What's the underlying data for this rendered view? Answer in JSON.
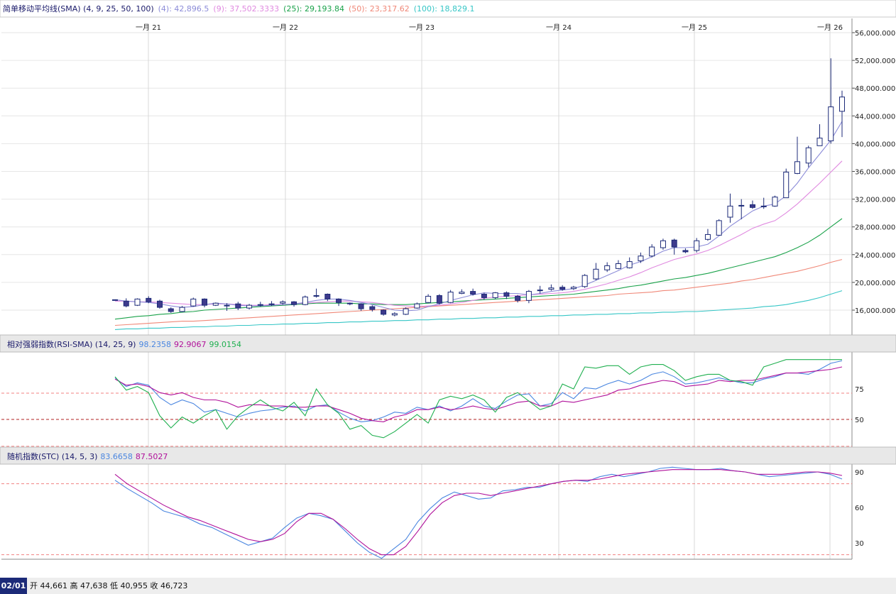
{
  "chart_data": {
    "type": "candlestick",
    "x_ticks": [
      "一月 21",
      "一月 22",
      "一月 23",
      "一月 24",
      "一月 25",
      "一月 26"
    ],
    "y_ticks_price": [
      "56,000.0000",
      "52,000.0000",
      "48,000.0000",
      "44,000.0000",
      "40,000.0000",
      "36,000.0000",
      "32,000.0000",
      "28,000.0000",
      "24,000.0000",
      "20,000.0000",
      "16,000.0000"
    ],
    "y_ticks_rsi": [
      "75",
      "50"
    ],
    "y_ticks_stc": [
      "90",
      "60",
      "30"
    ],
    "price_legend": {
      "title": "简单移动平均线(SMA) (4, 9, 25, 50, 100)",
      "items": [
        {
          "label": "(4): 42,896.5",
          "color": "#8c8cd8"
        },
        {
          "label": "(9): 37,502.3333",
          "color": "#e08ae0"
        },
        {
          "label": "(25): 29,193.84",
          "color": "#1aa24a"
        },
        {
          "label": "(50): 23,317.62",
          "color": "#f08878"
        },
        {
          "label": "(100): 18,829.1",
          "color": "#36c6c6"
        }
      ]
    },
    "rsi_legend": {
      "title": "相对强弱指数(RSI-SMA) (14, 25, 9)",
      "items": [
        {
          "label": "98.2358",
          "color": "#4a86e0"
        },
        {
          "label": "92.9067",
          "color": "#b0109a"
        },
        {
          "label": "99.0154",
          "color": "#20b050"
        }
      ]
    },
    "stc_legend": {
      "title": "随机指数(STC) (14, 5, 3)",
      "items": [
        {
          "label": "83.6658",
          "color": "#4a86e0"
        },
        {
          "label": "87.5027",
          "color": "#b0109a"
        }
      ]
    },
    "candles": [
      [
        17500,
        17500,
        17500,
        17500
      ],
      [
        17300,
        16600,
        17700,
        16400
      ],
      [
        16700,
        17600,
        17700,
        16600
      ],
      [
        17700,
        17200,
        18000,
        17000
      ],
      [
        17300,
        16400,
        17500,
        16200
      ],
      [
        16200,
        15800,
        16400,
        15600
      ],
      [
        15800,
        16400,
        16600,
        15700
      ],
      [
        16600,
        17600,
        17800,
        16500
      ],
      [
        17600,
        16700,
        17700,
        16400
      ],
      [
        16700,
        17000,
        17100,
        16600
      ],
      [
        16700,
        16600,
        17000,
        15900
      ],
      [
        16900,
        16300,
        17200,
        16000
      ],
      [
        16300,
        16700,
        16900,
        16100
      ],
      [
        16700,
        16800,
        17200,
        16500
      ],
      [
        16900,
        16800,
        17300,
        16600
      ],
      [
        17000,
        17200,
        17400,
        16800
      ],
      [
        17200,
        16800,
        17300,
        16500
      ],
      [
        16800,
        17900,
        18100,
        16700
      ],
      [
        18000,
        18100,
        19100,
        17800
      ],
      [
        18300,
        17600,
        18400,
        17300
      ],
      [
        17600,
        17100,
        17700,
        16600
      ],
      [
        17000,
        17000,
        17100,
        16700
      ],
      [
        16900,
        16200,
        17000,
        15900
      ],
      [
        16500,
        16100,
        16700,
        15800
      ],
      [
        16000,
        15400,
        16100,
        15200
      ],
      [
        15300,
        15500,
        15700,
        15100
      ],
      [
        15400,
        16200,
        16400,
        15300
      ],
      [
        16300,
        16900,
        17100,
        16200
      ],
      [
        17100,
        18000,
        18300,
        17000
      ],
      [
        18100,
        17000,
        18300,
        16800
      ],
      [
        17100,
        18600,
        18900,
        17000
      ],
      [
        18400,
        18600,
        19000,
        18300
      ],
      [
        18700,
        18300,
        19100,
        18100
      ],
      [
        18300,
        17800,
        18500,
        17500
      ],
      [
        17800,
        18500,
        18600,
        17600
      ],
      [
        18500,
        18000,
        18700,
        17600
      ],
      [
        18000,
        17400,
        18200,
        17100
      ],
      [
        17400,
        18700,
        18900,
        17000
      ],
      [
        18800,
        18900,
        19500,
        18400
      ],
      [
        19000,
        19200,
        19700,
        18800
      ],
      [
        19300,
        19000,
        19600,
        18800
      ],
      [
        19100,
        19300,
        19500,
        18900
      ],
      [
        19400,
        21000,
        21200,
        19200
      ],
      [
        20500,
        21900,
        22800,
        20300
      ],
      [
        21800,
        22400,
        22900,
        21500
      ],
      [
        22000,
        22700,
        23200,
        21900
      ],
      [
        22100,
        23000,
        23600,
        22000
      ],
      [
        23100,
        23800,
        24300,
        22800
      ],
      [
        23800,
        25100,
        25500,
        23600
      ],
      [
        25000,
        26000,
        26300,
        24700
      ],
      [
        26100,
        25100,
        26300,
        24000
      ],
      [
        24600,
        24400,
        24900,
        24200
      ],
      [
        24600,
        26000,
        26400,
        24300
      ],
      [
        26200,
        26900,
        27700,
        26000
      ],
      [
        26800,
        28900,
        29100,
        26800
      ],
      [
        29400,
        31000,
        32800,
        28600
      ],
      [
        31000,
        31100,
        32000,
        29100
      ],
      [
        31200,
        30800,
        31800,
        30600
      ],
      [
        30900,
        31000,
        32200,
        30600
      ],
      [
        31000,
        32300,
        32500,
        30900
      ],
      [
        32200,
        35900,
        36400,
        32200
      ],
      [
        35700,
        37400,
        41000,
        35600
      ],
      [
        37200,
        39400,
        39700,
        36600
      ],
      [
        39700,
        40800,
        42800,
        40000
      ],
      [
        40400,
        45300,
        52300,
        40000
      ],
      [
        44661,
        46723,
        47638,
        40955
      ]
    ],
    "sma4": [
      17500,
      17300,
      17200,
      17100,
      16900,
      16600,
      16400,
      16500,
      16800,
      17000,
      16900,
      16700,
      16600,
      16600,
      16700,
      16800,
      16900,
      17100,
      17400,
      17600,
      17600,
      17400,
      17100,
      16800,
      16400,
      16000,
      15900,
      16000,
      16500,
      16900,
      17400,
      17800,
      18200,
      18500,
      18400,
      18400,
      18400,
      18200,
      18400,
      18700,
      18900,
      19100,
      19600,
      20300,
      21000,
      21700,
      22500,
      23000,
      23700,
      24500,
      25000,
      25000,
      25100,
      25500,
      26700,
      28100,
      29200,
      30300,
      31000,
      31300,
      32500,
      34300,
      36500,
      38500,
      40500,
      43200
    ],
    "sma9": [
      17300,
      17300,
      17200,
      17200,
      17100,
      17000,
      16900,
      16800,
      16800,
      16900,
      16900,
      16800,
      16700,
      16700,
      16800,
      16800,
      16900,
      17000,
      17100,
      17200,
      17300,
      17300,
      17200,
      17100,
      16900,
      16700,
      16600,
      16500,
      16600,
      16700,
      16900,
      17100,
      17400,
      17700,
      17900,
      18000,
      18100,
      18200,
      18300,
      18400,
      18500,
      18700,
      19000,
      19400,
      19800,
      20300,
      20800,
      21400,
      22100,
      22700,
      23300,
      23700,
      24100,
      24600,
      25300,
      26100,
      26900,
      27800,
      28400,
      28900,
      30000,
      31300,
      32800,
      34300,
      35900,
      37500
    ],
    "sma25": [
      14700,
      14900,
      15100,
      15200,
      15400,
      15500,
      15700,
      15800,
      16000,
      16100,
      16200,
      16300,
      16400,
      16500,
      16600,
      16700,
      16800,
      16900,
      17000,
      17000,
      17000,
      17000,
      16900,
      16900,
      16800,
      16800,
      16800,
      16900,
      17000,
      17100,
      17200,
      17300,
      17400,
      17500,
      17600,
      17700,
      17800,
      17900,
      18000,
      18100,
      18200,
      18300,
      18500,
      18700,
      18900,
      19100,
      19400,
      19600,
      19900,
      20200,
      20500,
      20700,
      21000,
      21300,
      21700,
      22100,
      22500,
      22900,
      23300,
      23700,
      24300,
      25000,
      25800,
      26800,
      28000,
      29200
    ],
    "sma50": [
      13800,
      13900,
      14000,
      14100,
      14200,
      14300,
      14400,
      14400,
      14500,
      14600,
      14700,
      14800,
      14900,
      15000,
      15100,
      15200,
      15300,
      15400,
      15500,
      15600,
      15700,
      15800,
      15900,
      16000,
      16100,
      16200,
      16300,
      16400,
      16500,
      16600,
      16700,
      16800,
      16900,
      17000,
      17100,
      17200,
      17300,
      17400,
      17500,
      17600,
      17700,
      17800,
      17900,
      18000,
      18100,
      18300,
      18400,
      18500,
      18600,
      18800,
      18900,
      19100,
      19300,
      19500,
      19700,
      19900,
      20200,
      20400,
      20700,
      21000,
      21300,
      21600,
      22000,
      22400,
      22900,
      23300
    ],
    "sma100": [
      13200,
      13300,
      13300,
      13400,
      13400,
      13500,
      13500,
      13600,
      13600,
      13700,
      13700,
      13800,
      13800,
      13900,
      13900,
      14000,
      14000,
      14100,
      14100,
      14200,
      14200,
      14300,
      14300,
      14400,
      14400,
      14500,
      14500,
      14600,
      14600,
      14700,
      14700,
      14800,
      14800,
      14900,
      14900,
      15000,
      15000,
      15100,
      15100,
      15200,
      15200,
      15300,
      15300,
      15400,
      15400,
      15500,
      15500,
      15600,
      15600,
      15700,
      15700,
      15800,
      15800,
      15900,
      16000,
      16100,
      16200,
      16300,
      16500,
      16600,
      16800,
      17100,
      17400,
      17800,
      18300,
      18800
    ],
    "rsi_ticks_values": [
      75,
      50
    ],
    "rsi_series": [
      [
        84,
        77,
        80,
        78,
        68,
        62,
        66,
        63,
        56,
        58,
        55,
        52,
        55,
        57,
        58,
        60,
        61,
        57,
        61,
        62,
        56,
        51,
        48,
        49,
        52,
        56,
        55,
        60,
        58,
        61,
        57,
        61,
        67,
        61,
        59,
        65,
        70,
        71,
        61,
        63,
        72,
        67,
        76,
        75,
        79,
        82,
        79,
        82,
        87,
        89,
        85,
        79,
        80,
        82,
        84,
        82,
        80,
        80,
        83,
        85,
        88,
        88,
        87,
        91,
        96,
        98
      ],
      [
        83,
        78,
        79,
        77,
        72,
        70,
        72,
        68,
        66,
        66,
        64,
        60,
        62,
        62,
        61,
        61,
        60,
        60,
        61,
        61,
        58,
        55,
        51,
        49,
        48,
        52,
        54,
        58,
        58,
        60,
        58,
        59,
        61,
        59,
        58,
        61,
        64,
        65,
        61,
        61,
        65,
        64,
        66,
        68,
        70,
        74,
        75,
        78,
        80,
        82,
        81,
        77,
        78,
        79,
        82,
        81,
        82,
        82,
        84,
        86,
        88,
        88,
        89,
        90,
        91,
        93
      ],
      [
        85,
        74,
        77,
        72,
        53,
        43,
        52,
        47,
        53,
        58,
        42,
        53,
        60,
        66,
        60,
        57,
        64,
        53,
        75,
        62,
        55,
        42,
        45,
        37,
        35,
        40,
        47,
        54,
        47,
        66,
        69,
        67,
        70,
        66,
        56,
        68,
        72,
        65,
        58,
        61,
        79,
        75,
        93,
        92,
        94,
        94,
        87,
        93,
        95,
        95,
        90,
        82,
        85,
        87,
        87,
        82,
        81,
        78,
        93,
        96,
        99,
        99,
        99,
        99,
        99,
        99
      ]
    ],
    "stc_series": [
      [
        83,
        76,
        70,
        64,
        57,
        54,
        51,
        46,
        43,
        38,
        33,
        28,
        31,
        34,
        43,
        51,
        55,
        53,
        50,
        40,
        30,
        22,
        17,
        25,
        33,
        48,
        59,
        68,
        73,
        70,
        67,
        68,
        74,
        75,
        77,
        77,
        80,
        82,
        83,
        82,
        86,
        88,
        86,
        88,
        90,
        93,
        94,
        93,
        92,
        92,
        93,
        91,
        90,
        88,
        86,
        87,
        88,
        89,
        90,
        88,
        84
      ],
      [
        88,
        80,
        74,
        68,
        62,
        57,
        52,
        49,
        45,
        41,
        37,
        33,
        31,
        33,
        38,
        48,
        55,
        55,
        50,
        42,
        33,
        25,
        20,
        20,
        27,
        40,
        54,
        64,
        70,
        72,
        72,
        70,
        72,
        74,
        76,
        78,
        80,
        82,
        83,
        83,
        84,
        86,
        88,
        89,
        90,
        91,
        92,
        92,
        92,
        92,
        92,
        91,
        90,
        88,
        88,
        88,
        89,
        90,
        90,
        89,
        87
      ]
    ],
    "footer": {
      "date": "02/01",
      "ohlc": "开 44,661 高 47,638 低 40,955 收 46,723"
    }
  }
}
